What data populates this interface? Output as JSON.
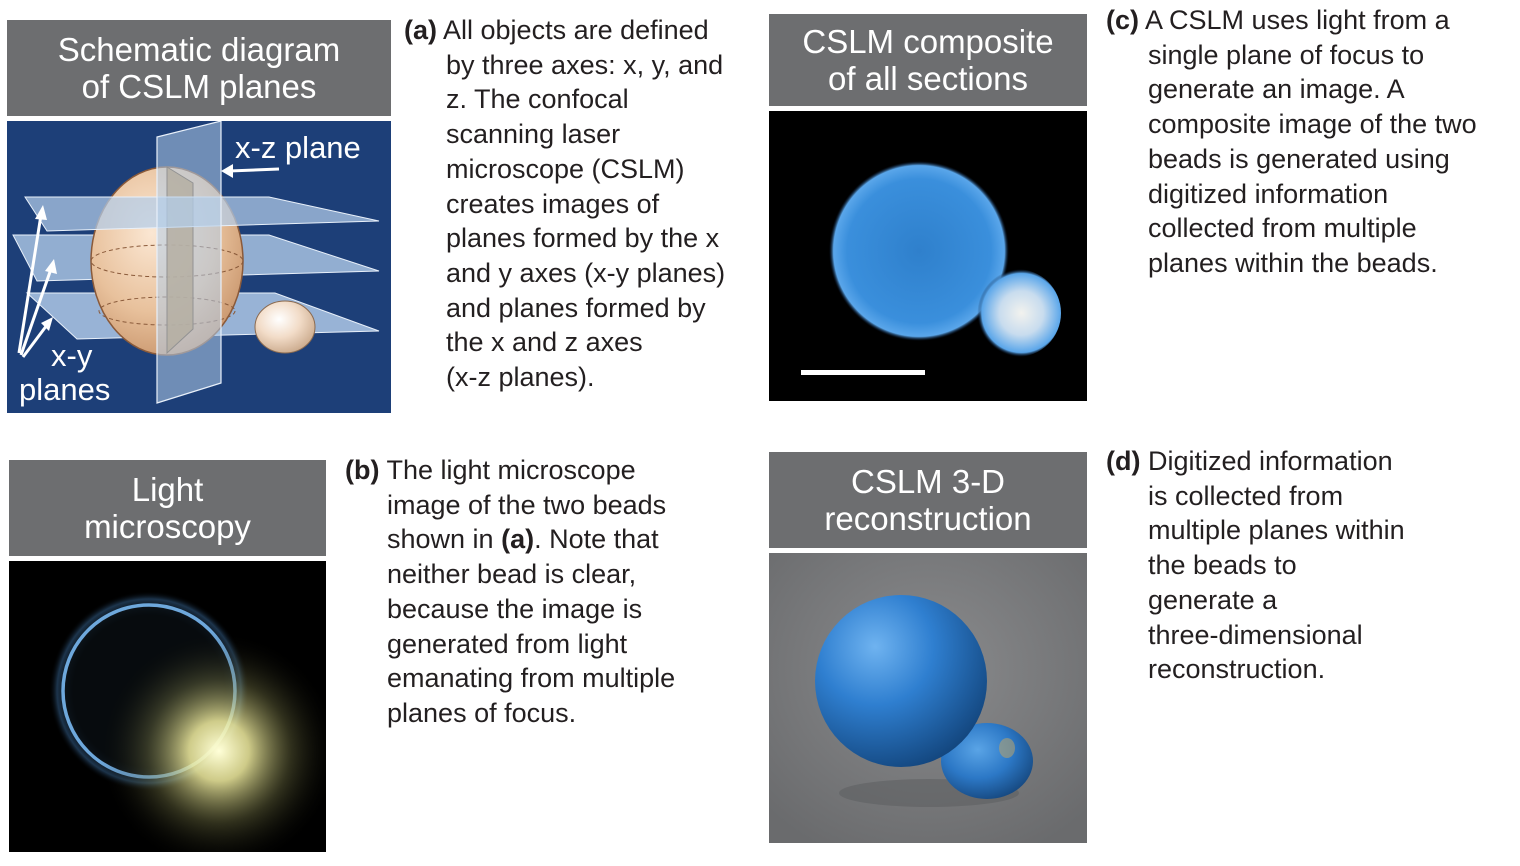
{
  "panel_a": {
    "header": [
      "Schematic diagram",
      "of CSLM planes"
    ],
    "label_xz": "x-z plane",
    "label_xy": [
      "x-y",
      "planes"
    ],
    "tag": "(a)",
    "caption_lines": [
      "All objects are defined",
      "by three axes: x, y, and",
      "z. The confocal",
      "scanning laser",
      "microscope (CSLM)",
      "creates images of",
      "planes formed by the x",
      "and y axes (x-y planes)",
      "and planes formed by",
      "the x and z axes",
      "(x-z planes)."
    ]
  },
  "panel_b": {
    "header": [
      "Light",
      "microscopy"
    ],
    "tag": "(b)",
    "line1": "The light microscope",
    "line2": "image of the two beads",
    "line3_pre": "shown in ",
    "line3_ref": "(a)",
    "line3_post": ". Note that",
    "caption_lines": [
      "neither bead is clear,",
      "because the image is",
      "generated from light",
      "emanating from multiple",
      "planes of focus."
    ]
  },
  "panel_c": {
    "header": [
      "CSLM composite",
      "of all sections"
    ],
    "tag": "(c)",
    "caption_lines": [
      "A CSLM uses light from a",
      "single plane of focus to",
      "generate an image. A",
      "composite image of the two",
      "beads is generated using",
      "digitized information",
      "collected from multiple",
      "planes within the beads."
    ]
  },
  "panel_d": {
    "header": [
      "CSLM 3-D",
      "reconstruction"
    ],
    "tag": "(d)",
    "caption_lines": [
      "Digitized information",
      "is collected from",
      "multiple planes within",
      "the beads to",
      "generate a",
      "three-dimensional",
      "reconstruction."
    ]
  },
  "colors": {
    "header_gray": "#6d6e70",
    "schematic_blue": "#1d3f78",
    "plane_blue": "#a9c6e6",
    "bead_tan": "#e9c5a4",
    "fluorescent_blue": "#3a8fdc",
    "reconstruction_blue": "#2f7fd0",
    "reconstruction_bg": "#7a7b7d"
  }
}
